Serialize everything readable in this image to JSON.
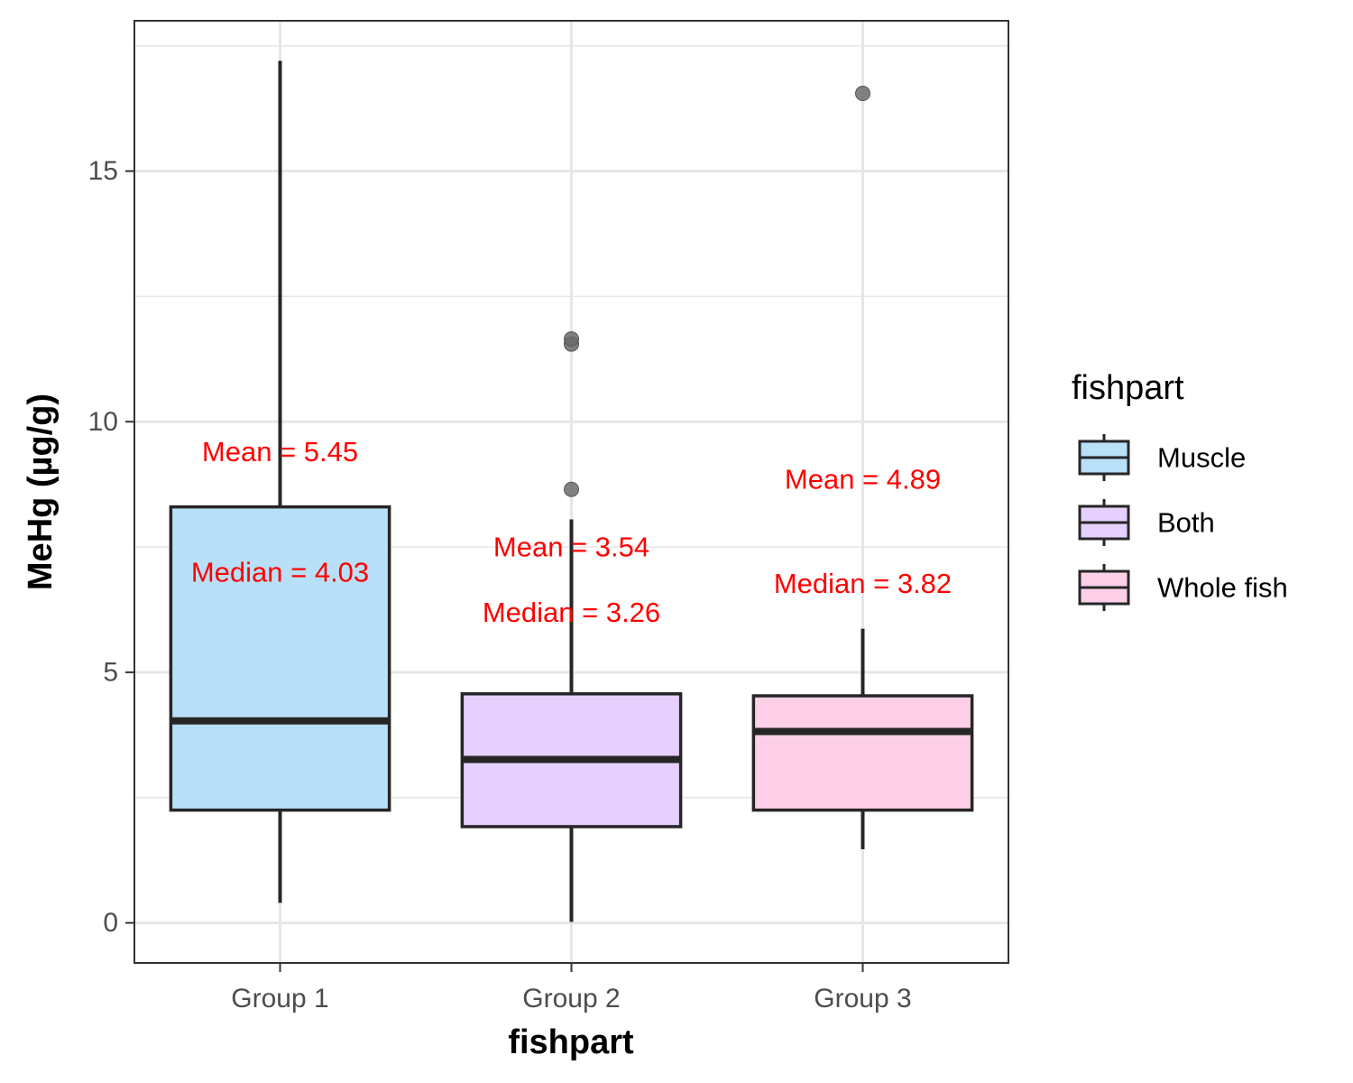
{
  "chart_data": {
    "type": "box",
    "xlabel": "fishpart",
    "ylabel": "MeHg (µg/g)",
    "categories": [
      "Group 1",
      "Group 2",
      "Group 3"
    ],
    "ylim": [
      -0.8,
      18.0
    ],
    "y_ticks": [
      0,
      5,
      10,
      15
    ],
    "y_tick_labels": [
      "0",
      "5",
      "10",
      "15"
    ],
    "grid": true,
    "boxes": [
      {
        "category": "Group 1",
        "fill_group": "Muscle",
        "min": 0.4,
        "q1": 2.25,
        "median": 4.03,
        "q3": 8.3,
        "max": 17.2,
        "outliers": []
      },
      {
        "category": "Group 2",
        "fill_group": "Both",
        "min": 0.02,
        "q1": 1.92,
        "median": 3.26,
        "q3": 4.57,
        "max": 8.05,
        "outliers": [
          8.65,
          11.55,
          11.65
        ]
      },
      {
        "category": "Group 3",
        "fill_group": "Whole fish",
        "min": 1.47,
        "q1": 2.25,
        "median": 3.82,
        "q3": 4.53,
        "max": 5.87,
        "outliers": [
          16.55
        ]
      }
    ],
    "annotations": [
      {
        "category": "Group 1",
        "mean_text": "Mean = 5.45",
        "median_text": "Median = 4.03",
        "mean_y": 9.4,
        "median_y": 7.0
      },
      {
        "category": "Group 2",
        "mean_text": "Mean = 3.54",
        "median_text": "Median = 3.26",
        "mean_y": 7.5,
        "median_y": 6.2
      },
      {
        "category": "Group 3",
        "mean_text": "Mean = 4.89",
        "median_text": "Median = 3.82",
        "mean_y": 8.85,
        "median_y": 6.77
      }
    ],
    "legend": {
      "title": "fishpart",
      "position": "right",
      "items": [
        {
          "label": "Muscle",
          "color": "#b8e0f8"
        },
        {
          "label": "Both",
          "color": "#e6d0fd"
        },
        {
          "label": "Whole fish",
          "color": "#fdd0e8"
        }
      ]
    },
    "colors": {
      "box_fills": [
        "#b8e0f8",
        "#e6d0fd",
        "#fdd0e8"
      ],
      "outline": "#262626",
      "outlier": "#6b6b6b",
      "annotation": "#ff0000",
      "grid": "#e6e6e6"
    }
  }
}
